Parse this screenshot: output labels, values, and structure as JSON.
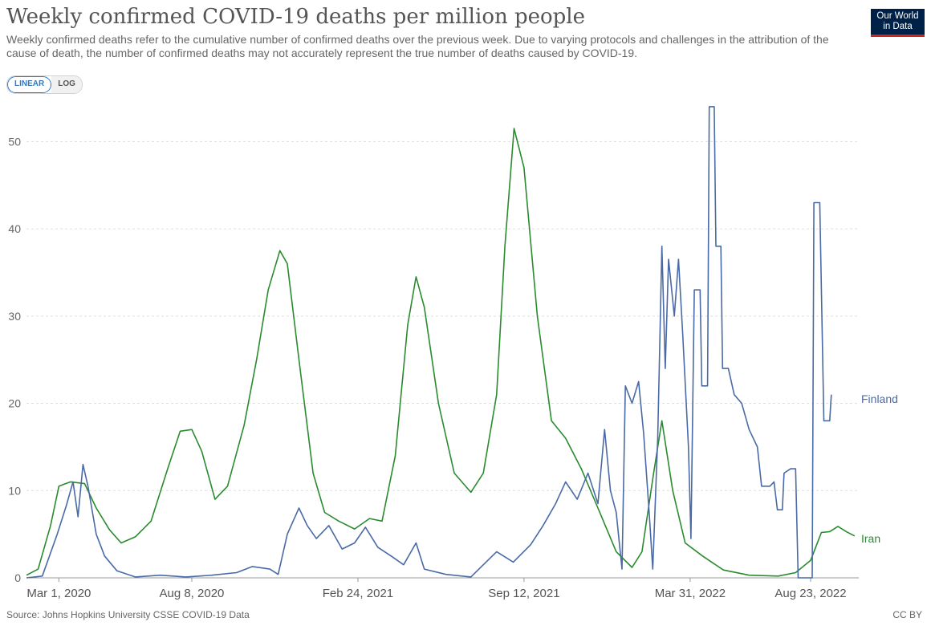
{
  "title": "Weekly confirmed COVID-19 deaths per million people",
  "subtitle": "Weekly confirmed deaths refer to the cumulative number of confirmed deaths over the previous week. Due to varying protocols and challenges in the attribution of the cause of death, the number of confirmed deaths may not accurately represent the true number of deaths caused by COVID-19.",
  "logo": {
    "line1": "Our World",
    "line2": "in Data"
  },
  "scale_toggle": {
    "linear": "LINEAR",
    "log": "LOG",
    "selected": "LINEAR"
  },
  "footer": {
    "source": "Source: Johns Hopkins University CSSE COVID-19 Data",
    "license": "CC BY"
  },
  "chart_data": {
    "type": "line",
    "title": "Weekly confirmed COVID-19 deaths per million people",
    "x_ticks": [
      "Mar 1, 2020",
      "Aug 8, 2020",
      "Feb 24, 2021",
      "Sep 12, 2021",
      "Mar 31, 2022",
      "Aug 23, 2022"
    ],
    "x_range": [
      "2020-01-22",
      "2022-10-20"
    ],
    "y_ticks": [
      0,
      10,
      20,
      30,
      40,
      50
    ],
    "ylim": [
      0,
      55
    ],
    "grid": "horizontal dashed",
    "legend": "line-end labels",
    "series": [
      {
        "name": "Iran",
        "color": "#2a8b2e",
        "points": [
          [
            "2020-01-22",
            0.3
          ],
          [
            "2020-02-05",
            1
          ],
          [
            "2020-02-20",
            6
          ],
          [
            "2020-03-01",
            10.5
          ],
          [
            "2020-03-15",
            11
          ],
          [
            "2020-04-01",
            10.8
          ],
          [
            "2020-04-15",
            8
          ],
          [
            "2020-05-01",
            5.5
          ],
          [
            "2020-05-15",
            4
          ],
          [
            "2020-06-01",
            4.7
          ],
          [
            "2020-06-20",
            6.5
          ],
          [
            "2020-07-10",
            12.5
          ],
          [
            "2020-07-25",
            16.8
          ],
          [
            "2020-08-08",
            17
          ],
          [
            "2020-08-20",
            14.5
          ],
          [
            "2020-09-05",
            9
          ],
          [
            "2020-09-20",
            10.5
          ],
          [
            "2020-10-10",
            17.5
          ],
          [
            "2020-10-25",
            25
          ],
          [
            "2020-11-08",
            33
          ],
          [
            "2020-11-22",
            37.5
          ],
          [
            "2020-12-01",
            36
          ],
          [
            "2020-12-15",
            25
          ],
          [
            "2021-01-01",
            12
          ],
          [
            "2021-01-15",
            7.5
          ],
          [
            "2021-02-01",
            6.5
          ],
          [
            "2021-02-20",
            5.6
          ],
          [
            "2021-03-10",
            6.8
          ],
          [
            "2021-03-25",
            6.5
          ],
          [
            "2021-04-10",
            14
          ],
          [
            "2021-04-25",
            29
          ],
          [
            "2021-05-05",
            34.5
          ],
          [
            "2021-05-15",
            31
          ],
          [
            "2021-06-01",
            20
          ],
          [
            "2021-06-20",
            12
          ],
          [
            "2021-07-10",
            9.8
          ],
          [
            "2021-07-25",
            12
          ],
          [
            "2021-08-10",
            21
          ],
          [
            "2021-08-20",
            38
          ],
          [
            "2021-08-31",
            51.5
          ],
          [
            "2021-09-12",
            47
          ],
          [
            "2021-09-28",
            30
          ],
          [
            "2021-10-15",
            18
          ],
          [
            "2021-11-01",
            16
          ],
          [
            "2021-11-20",
            12.5
          ],
          [
            "2021-12-10",
            8
          ],
          [
            "2022-01-01",
            3
          ],
          [
            "2022-01-20",
            1.2
          ],
          [
            "2022-02-01",
            3
          ],
          [
            "2022-02-15",
            12
          ],
          [
            "2022-02-25",
            18
          ],
          [
            "2022-03-10",
            10
          ],
          [
            "2022-03-25",
            4
          ],
          [
            "2022-04-15",
            2.5
          ],
          [
            "2022-05-10",
            0.9
          ],
          [
            "2022-06-10",
            0.3
          ],
          [
            "2022-07-15",
            0.2
          ],
          [
            "2022-08-05",
            0.6
          ],
          [
            "2022-08-23",
            2
          ],
          [
            "2022-09-05",
            5.2
          ],
          [
            "2022-09-15",
            5.3
          ],
          [
            "2022-09-25",
            5.9
          ],
          [
            "2022-10-05",
            5.3
          ],
          [
            "2022-10-15",
            4.8
          ]
        ]
      },
      {
        "name": "Finland",
        "color": "#4a6aa5",
        "points": [
          [
            "2020-01-22",
            0
          ],
          [
            "2020-02-10",
            0.2
          ],
          [
            "2020-02-28",
            5
          ],
          [
            "2020-03-10",
            8.3
          ],
          [
            "2020-03-18",
            11
          ],
          [
            "2020-03-24",
            7
          ],
          [
            "2020-03-30",
            13
          ],
          [
            "2020-04-05",
            10.5
          ],
          [
            "2020-04-15",
            5
          ],
          [
            "2020-04-25",
            2.5
          ],
          [
            "2020-05-10",
            0.8
          ],
          [
            "2020-06-01",
            0.1
          ],
          [
            "2020-07-01",
            0.3
          ],
          [
            "2020-08-01",
            0.1
          ],
          [
            "2020-09-01",
            0.3
          ],
          [
            "2020-10-01",
            0.6
          ],
          [
            "2020-10-20",
            1.3
          ],
          [
            "2020-11-10",
            1.0
          ],
          [
            "2020-11-20",
            0.4
          ],
          [
            "2020-12-01",
            5
          ],
          [
            "2020-12-15",
            8
          ],
          [
            "2020-12-25",
            6
          ],
          [
            "2021-01-05",
            4.5
          ],
          [
            "2021-01-20",
            6
          ],
          [
            "2021-02-05",
            3.3
          ],
          [
            "2021-02-20",
            4
          ],
          [
            "2021-03-05",
            5.8
          ],
          [
            "2021-03-20",
            3.5
          ],
          [
            "2021-04-05",
            2.5
          ],
          [
            "2021-04-20",
            1.5
          ],
          [
            "2021-05-05",
            4
          ],
          [
            "2021-05-15",
            1
          ],
          [
            "2021-06-10",
            0.4
          ],
          [
            "2021-07-10",
            0.1
          ],
          [
            "2021-07-25",
            1.5
          ],
          [
            "2021-08-10",
            3
          ],
          [
            "2021-08-30",
            1.8
          ],
          [
            "2021-09-20",
            3.8
          ],
          [
            "2021-10-05",
            6
          ],
          [
            "2021-10-20",
            8.5
          ],
          [
            "2021-11-01",
            11
          ],
          [
            "2021-11-15",
            9
          ],
          [
            "2021-11-28",
            12
          ],
          [
            "2021-12-10",
            8.5
          ],
          [
            "2021-12-18",
            17
          ],
          [
            "2021-12-25",
            10
          ],
          [
            "2022-01-01",
            7.5
          ],
          [
            "2022-01-08",
            1
          ],
          [
            "2022-01-12",
            22
          ],
          [
            "2022-01-20",
            20
          ],
          [
            "2022-01-28",
            22.5
          ],
          [
            "2022-02-03",
            16.5
          ],
          [
            "2022-02-10",
            7
          ],
          [
            "2022-02-14",
            1
          ],
          [
            "2022-02-20",
            16
          ],
          [
            "2022-02-25",
            38
          ],
          [
            "2022-03-01",
            24
          ],
          [
            "2022-03-05",
            36.5
          ],
          [
            "2022-03-12",
            30
          ],
          [
            "2022-03-17",
            36.5
          ],
          [
            "2022-03-22",
            28
          ],
          [
            "2022-03-29",
            15
          ],
          [
            "2022-04-01",
            4.5
          ],
          [
            "2022-04-05",
            33
          ],
          [
            "2022-04-12",
            33
          ],
          [
            "2022-04-14",
            22
          ],
          [
            "2022-04-21",
            22
          ],
          [
            "2022-04-23",
            54
          ],
          [
            "2022-04-29",
            54
          ],
          [
            "2022-05-01",
            38
          ],
          [
            "2022-05-07",
            38
          ],
          [
            "2022-05-09",
            24
          ],
          [
            "2022-05-16",
            24
          ],
          [
            "2022-05-23",
            21
          ],
          [
            "2022-06-01",
            20
          ],
          [
            "2022-06-10",
            17
          ],
          [
            "2022-06-20",
            15
          ],
          [
            "2022-06-25",
            10.5
          ],
          [
            "2022-07-05",
            10.5
          ],
          [
            "2022-07-10",
            11
          ],
          [
            "2022-07-14",
            7.8
          ],
          [
            "2022-07-20",
            7.8
          ],
          [
            "2022-07-22",
            12
          ],
          [
            "2022-07-30",
            12.5
          ],
          [
            "2022-08-05",
            12.5
          ],
          [
            "2022-08-08",
            0
          ],
          [
            "2022-08-25",
            0
          ],
          [
            "2022-08-27",
            43
          ],
          [
            "2022-09-03",
            43
          ],
          [
            "2022-09-08",
            18
          ],
          [
            "2022-09-15",
            18
          ],
          [
            "2022-09-17",
            21
          ]
        ]
      }
    ]
  }
}
